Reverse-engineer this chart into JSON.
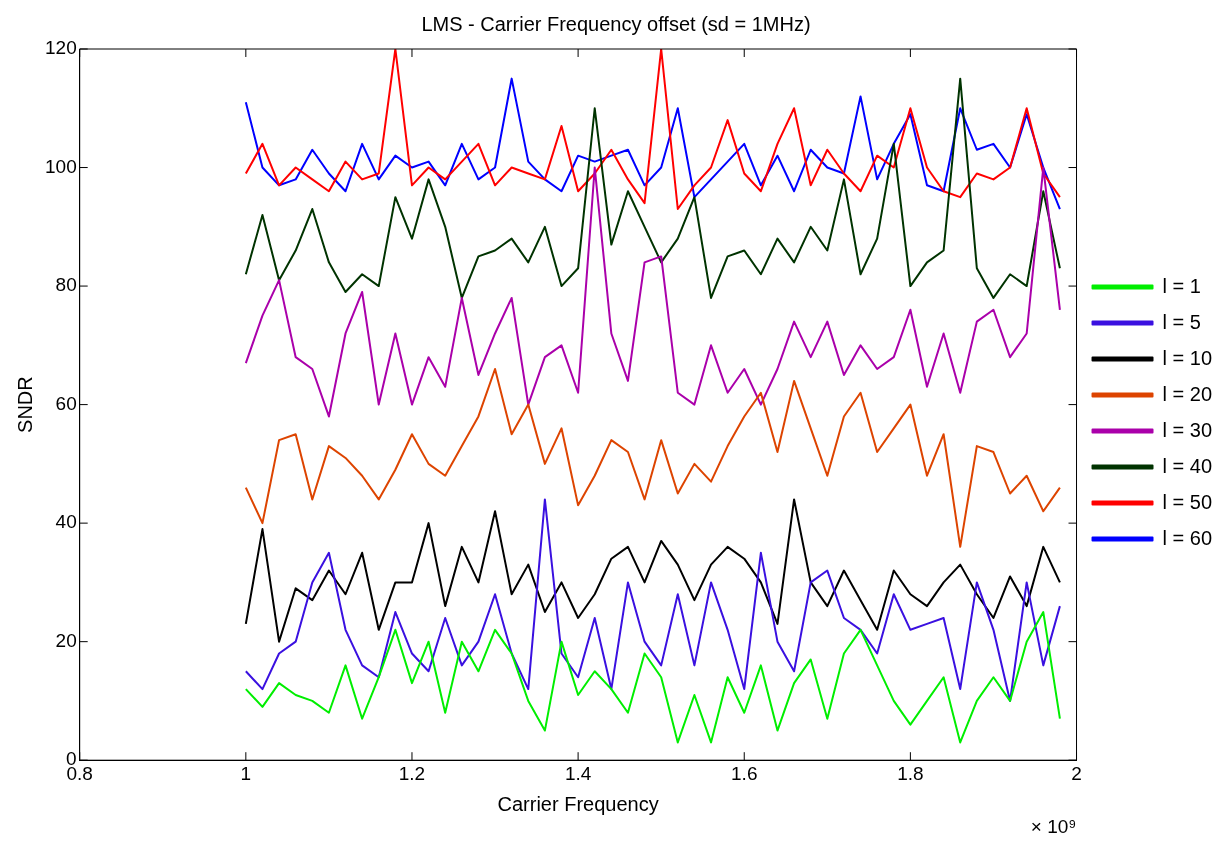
{
  "chart_data": {
    "type": "line",
    "title": "LMS - Carrier Frequency offset (sd = 1MHz)",
    "xlabel": "Carrier Frequency",
    "ylabel": "SNDR",
    "annotations": [
      "× 10⁹"
    ],
    "x": [
      1.0,
      1.02,
      1.04,
      1.06,
      1.08,
      1.1,
      1.12,
      1.14,
      1.16,
      1.18,
      1.2,
      1.22,
      1.24,
      1.26,
      1.28,
      1.3,
      1.32,
      1.34,
      1.36,
      1.38,
      1.4,
      1.42,
      1.44,
      1.46,
      1.48,
      1.5,
      1.52,
      1.54,
      1.56,
      1.58,
      1.6,
      1.62,
      1.64,
      1.66,
      1.68,
      1.7,
      1.72,
      1.74,
      1.76,
      1.78,
      1.8,
      1.82,
      1.84,
      1.86,
      1.88,
      1.9,
      1.92,
      1.94,
      1.96,
      1.98
    ],
    "series": [
      {
        "name": "l = 1",
        "color": "#00ee00",
        "values": [
          12,
          9,
          13,
          11,
          10,
          8,
          16,
          7,
          14,
          22,
          13,
          20,
          8,
          20,
          15,
          22,
          18,
          10,
          5,
          20,
          11,
          15,
          12,
          8,
          18,
          14,
          3,
          11,
          3,
          14,
          8,
          16,
          5,
          13,
          17,
          7,
          18,
          22,
          16,
          10,
          6,
          10,
          14,
          3,
          10,
          14,
          10,
          20,
          25,
          7
        ]
      },
      {
        "name": "l = 5",
        "color": "#3a10e0",
        "values": [
          15,
          12,
          18,
          20,
          30,
          35,
          22,
          16,
          14,
          25,
          18,
          15,
          24,
          16,
          20,
          28,
          18,
          12,
          44,
          18,
          14,
          24,
          12,
          30,
          20,
          16,
          28,
          16,
          30,
          22,
          12,
          35,
          20,
          15,
          30,
          32,
          24,
          22,
          18,
          28,
          22,
          23,
          24,
          12,
          30,
          22,
          10,
          30,
          16,
          26
        ]
      },
      {
        "name": "l = 10",
        "color": "#000000",
        "values": [
          23,
          39,
          20,
          29,
          27,
          32,
          28,
          35,
          22,
          30,
          30,
          40,
          26,
          36,
          30,
          42,
          28,
          33,
          25,
          30,
          24,
          28,
          34,
          36,
          30,
          37,
          33,
          27,
          33,
          36,
          34,
          30,
          23,
          44,
          30,
          26,
          32,
          27,
          22,
          32,
          28,
          26,
          30,
          33,
          28,
          24,
          31,
          26,
          36,
          30
        ]
      },
      {
        "name": "l = 20",
        "color": "#dd4400",
        "values": [
          46,
          40,
          54,
          55,
          44,
          53,
          51,
          48,
          44,
          49,
          55,
          50,
          48,
          53,
          58,
          66,
          55,
          60,
          50,
          56,
          43,
          48,
          54,
          52,
          44,
          54,
          45,
          50,
          47,
          53,
          58,
          62,
          52,
          64,
          56,
          48,
          58,
          62,
          52,
          56,
          60,
          48,
          55,
          36,
          53,
          52,
          45,
          48,
          42,
          46
        ]
      },
      {
        "name": "l = 30",
        "color": "#aa00aa",
        "values": [
          67,
          75,
          81,
          68,
          66,
          58,
          72,
          79,
          60,
          72,
          60,
          68,
          63,
          78,
          65,
          72,
          78,
          60,
          68,
          70,
          62,
          100,
          72,
          64,
          84,
          85,
          62,
          60,
          70,
          62,
          66,
          60,
          66,
          74,
          68,
          74,
          65,
          70,
          66,
          68,
          76,
          63,
          72,
          62,
          74,
          76,
          68,
          72,
          100,
          76
        ]
      },
      {
        "name": "l = 40",
        "color": "#003300",
        "values": [
          82,
          92,
          81,
          86,
          93,
          84,
          79,
          82,
          80,
          95,
          88,
          98,
          90,
          78,
          85,
          86,
          88,
          84,
          90,
          80,
          83,
          110,
          87,
          96,
          90,
          84,
          88,
          95,
          78,
          85,
          86,
          82,
          88,
          84,
          90,
          86,
          98,
          82,
          88,
          104,
          80,
          84,
          86,
          115,
          83,
          78,
          82,
          80,
          96,
          83
        ]
      },
      {
        "name": "l = 50",
        "color": "#ff0000",
        "values": [
          99,
          104,
          97,
          100,
          98,
          96,
          101,
          98,
          99,
          120,
          97,
          100,
          98,
          101,
          104,
          97,
          100,
          99,
          98,
          107,
          96,
          99,
          103,
          98,
          94,
          120,
          93,
          97,
          100,
          108,
          99,
          96,
          104,
          110,
          97,
          103,
          99,
          96,
          102,
          100,
          110,
          100,
          96,
          95,
          99,
          98,
          100,
          110,
          99,
          95
        ]
      },
      {
        "name": "l = 60",
        "color": "#0000ff",
        "values": [
          111,
          100,
          97,
          98,
          103,
          99,
          96,
          104,
          98,
          102,
          100,
          101,
          97,
          104,
          98,
          100,
          115,
          101,
          98,
          96,
          102,
          101,
          102,
          103,
          97,
          100,
          110,
          95,
          98,
          101,
          104,
          97,
          102,
          96,
          103,
          100,
          99,
          112,
          98,
          104,
          109,
          97,
          96,
          110,
          103,
          104,
          100,
          109,
          100,
          93
        ]
      }
    ],
    "xlim": [
      0.8,
      2
    ],
    "xticks": [
      0.8,
      1,
      1.2,
      1.4,
      1.6,
      1.8,
      2
    ],
    "ylim": [
      0,
      120
    ],
    "yticks": [
      0,
      20,
      40,
      60,
      80,
      100,
      120
    ],
    "grid": false,
    "legend": "right",
    "marker": "none",
    "line_style": "solid"
  }
}
